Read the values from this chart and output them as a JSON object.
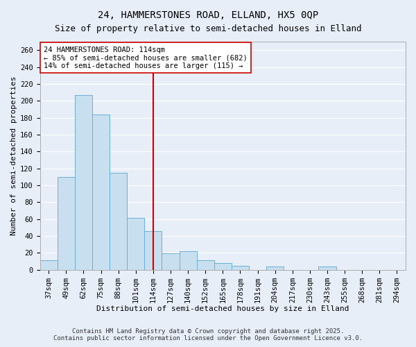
{
  "title": "24, HAMMERSTONES ROAD, ELLAND, HX5 0QP",
  "subtitle": "Size of property relative to semi-detached houses in Elland",
  "xlabel": "Distribution of semi-detached houses by size in Elland",
  "ylabel": "Number of semi-detached properties",
  "categories": [
    "37sqm",
    "49sqm",
    "62sqm",
    "75sqm",
    "88sqm",
    "101sqm",
    "114sqm",
    "127sqm",
    "140sqm",
    "152sqm",
    "165sqm",
    "178sqm",
    "191sqm",
    "204sqm",
    "217sqm",
    "230sqm",
    "243sqm",
    "255sqm",
    "268sqm",
    "281sqm",
    "294sqm"
  ],
  "values": [
    11,
    110,
    207,
    184,
    115,
    61,
    46,
    19,
    22,
    11,
    8,
    5,
    0,
    4,
    0,
    0,
    4,
    0,
    0,
    0,
    0
  ],
  "bar_color": "#c8dff0",
  "bar_edge_color": "#6baed6",
  "highlight_index": 6,
  "highlight_color": "#cc0000",
  "annotation_line1": "24 HAMMERSTONES ROAD: 114sqm",
  "annotation_line2": "← 85% of semi-detached houses are smaller (682)",
  "annotation_line3": "14% of semi-detached houses are larger (115) →",
  "footer1": "Contains HM Land Registry data © Crown copyright and database right 2025.",
  "footer2": "Contains public sector information licensed under the Open Government Licence v3.0.",
  "ylim": [
    0,
    270
  ],
  "yticks": [
    0,
    20,
    40,
    60,
    80,
    100,
    120,
    140,
    160,
    180,
    200,
    220,
    240,
    260
  ],
  "background_color": "#e8eef8",
  "plot_background": "#e8eef8",
  "grid_color": "#ffffff",
  "title_fontsize": 10,
  "subtitle_fontsize": 9,
  "axis_label_fontsize": 8,
  "tick_fontsize": 7.5,
  "annotation_fontsize": 7.5,
  "footer_fontsize": 6.5
}
